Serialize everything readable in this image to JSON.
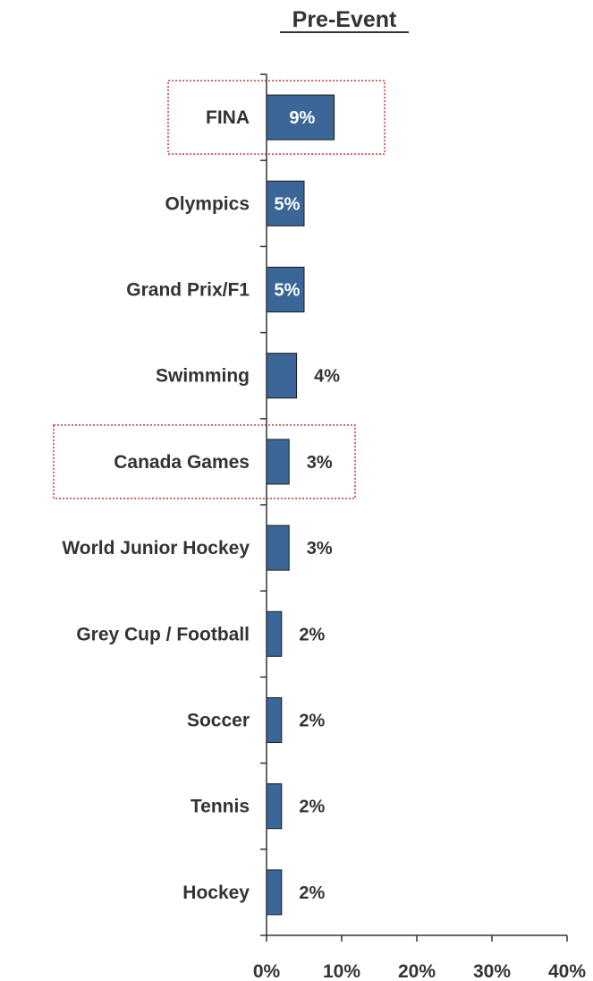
{
  "chart_data": {
    "type": "bar",
    "orientation": "horizontal",
    "title": "Pre-Event",
    "categories": [
      "FINA",
      "Olympics",
      "Grand Prix/F1",
      "Swimming",
      "Canada Games",
      "World Junior Hockey",
      "Grey Cup / Football",
      "Soccer",
      "Tennis",
      "Hockey"
    ],
    "values": [
      9,
      5,
      5,
      4,
      3,
      3,
      2,
      2,
      2,
      2
    ],
    "data_labels": [
      "9%",
      "5%",
      "5%",
      "4%",
      "3%",
      "3%",
      "2%",
      "2%",
      "2%",
      "2%"
    ],
    "data_label_inside": [
      true,
      true,
      true,
      false,
      false,
      false,
      false,
      false,
      false,
      false
    ],
    "highlighted": [
      "FINA",
      "Canada Games"
    ],
    "xlim": [
      0,
      40
    ],
    "x_ticks": [
      0,
      10,
      20,
      30,
      40
    ],
    "x_tick_labels": [
      "0%",
      "10%",
      "20%",
      "30%",
      "40%"
    ],
    "xlabel": "",
    "ylabel": "",
    "grid": false,
    "legend": "none",
    "bar_color": "#3a6698",
    "bar_edge_color": "#1a1a1a",
    "highlight_box_color": "#cc3333",
    "text_color": "#333333"
  }
}
